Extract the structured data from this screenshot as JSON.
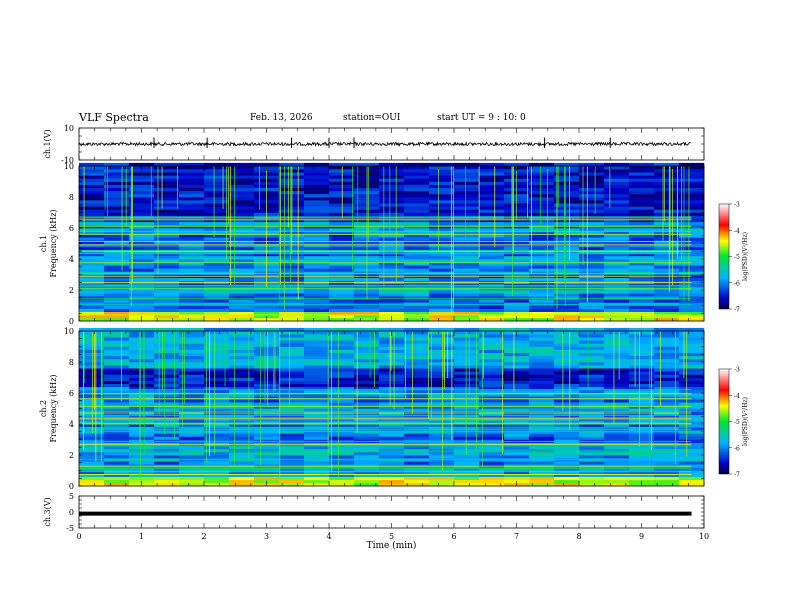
{
  "header": {
    "title": "VLF Spectra",
    "date": "Feb. 13, 2026",
    "station": "station=OUI",
    "start_ut": "start  UT =  9 : 10: 0"
  },
  "chart_data": [
    {
      "type": "line",
      "panel": "ch1-waveform",
      "ylabel": "ch.1(V)",
      "ylim": [
        -10,
        10
      ],
      "yticks": [
        "10",
        "-10"
      ],
      "baseline": 0,
      "noise_amplitude": 1
    },
    {
      "type": "heatmap",
      "panel": "ch1-spectrogram",
      "ylabel": "ch.1\nFrequency (kHz)",
      "ylim": [
        0,
        10
      ],
      "yticks": [
        "0",
        "2",
        "4",
        "6",
        "8",
        "10"
      ],
      "colorbar": {
        "label": "log(PSD)(V²/Hz)",
        "range": [
          -7,
          -3
        ],
        "ticks": [
          "-3",
          "-4",
          "-5",
          "-6",
          "-7"
        ]
      }
    },
    {
      "type": "heatmap",
      "panel": "ch2-spectrogram",
      "ylabel": "ch.2\nFrequency (kHz)",
      "ylim": [
        0,
        10
      ],
      "yticks": [
        "0",
        "2",
        "4",
        "6",
        "8",
        "10"
      ],
      "colorbar": {
        "label": "log(PSD)(V²/Hz)",
        "range": [
          -7,
          -3
        ],
        "ticks": [
          "-3",
          "-4",
          "-5",
          "-6",
          "-7"
        ]
      }
    },
    {
      "type": "line",
      "panel": "ch3-waveform",
      "ylabel": "ch.3(V)",
      "ylim": [
        -5,
        5
      ],
      "yticks": [
        "5",
        "0",
        "-5"
      ],
      "baseline": -0.5
    }
  ],
  "xaxis": {
    "label": "Time (min)",
    "range": [
      0,
      10
    ],
    "data_end": 9.8,
    "ticks": [
      "0",
      "1",
      "2",
      "3",
      "4",
      "5",
      "6",
      "7",
      "8",
      "9",
      "10"
    ]
  }
}
